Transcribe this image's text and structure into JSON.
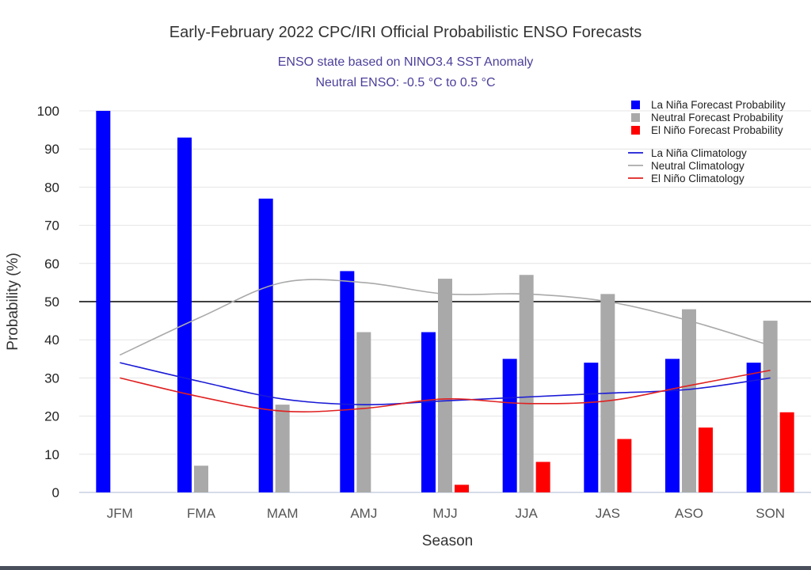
{
  "chart_data": {
    "type": "bar",
    "title": "Early-February 2022 CPC/IRI Official Probabilistic ENSO Forecasts",
    "subtitle": [
      "ENSO state based on NINO3.4 SST Anomaly",
      "Neutral ENSO: -0.5 °C to 0.5 °C"
    ],
    "xlabel": "Season",
    "ylabel": "Probability (%)",
    "ylim": [
      0,
      100
    ],
    "yticks": [
      0,
      10,
      20,
      30,
      40,
      50,
      60,
      70,
      80,
      90,
      100
    ],
    "reference_line": 50,
    "grid": true,
    "legend_position": "top-right",
    "categories": [
      "JFM",
      "FMA",
      "MAM",
      "AMJ",
      "MJJ",
      "JJA",
      "JAS",
      "ASO",
      "SON"
    ],
    "series": [
      {
        "name": "La Niña Forecast Probability",
        "kind": "bar",
        "color": "#0000ff",
        "values": [
          100,
          93,
          77,
          58,
          42,
          35,
          34,
          35,
          34
        ]
      },
      {
        "name": "Neutral Forecast Probability",
        "kind": "bar",
        "color": "#a9a9a9",
        "values": [
          0,
          7,
          23,
          42,
          56,
          57,
          52,
          48,
          45
        ]
      },
      {
        "name": "El Niño Forecast Probability",
        "kind": "bar",
        "color": "#ff0000",
        "values": [
          0,
          0,
          0,
          0,
          2,
          8,
          14,
          17,
          21
        ]
      },
      {
        "name": "La Niña Climatology",
        "kind": "line",
        "color": "#1a1ad6",
        "values": [
          34,
          29,
          24.5,
          23,
          24,
          25,
          26,
          27,
          30
        ]
      },
      {
        "name": "Neutral Climatology",
        "kind": "line",
        "color": "#a9a9a9",
        "values": [
          36,
          46,
          55,
          55,
          52,
          52,
          50,
          45,
          38.5
        ]
      },
      {
        "name": "El Niño Climatology",
        "kind": "line",
        "color": "#e02020",
        "values": [
          30,
          25,
          21.3,
          22,
          24.5,
          23.3,
          24,
          28,
          32
        ]
      }
    ]
  }
}
